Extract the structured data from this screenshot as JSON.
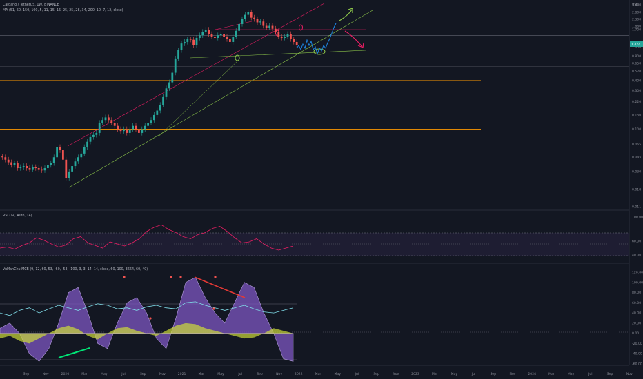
{
  "header": {
    "symbol_line": "Cardano / TetherUS, 1W, BINANCE",
    "ma_line": "MA (51, 50, 150, 100, 5, 11, 15, 16, 25, 25, 28, 34, 200, 10, 7, 12, close)",
    "currency": "USDT"
  },
  "price_axis": {
    "labels": [
      "3.450",
      "2.800",
      "2.300",
      "1.880",
      "1.700",
      "1.050",
      "0.800",
      "0.650",
      "0.520",
      "0.400",
      "0.300",
      "0.220",
      "0.150",
      "0.100",
      "0.065",
      "0.045",
      "0.030",
      "0.018",
      "0.011"
    ],
    "current_price": "1.474"
  },
  "rsi": {
    "title": "RSI (14, Auto, 14)",
    "labels": [
      "100.00",
      "60.00",
      "40.00"
    ]
  },
  "wt": {
    "title": "VuManChu MCB (9, 12, 60, 53, -60, -53, -100, 3, 3, 14, 14, close, 60, 100, 3664, 60, 40)",
    "labels": [
      "120.00",
      "100.00",
      "80.00",
      "60.00",
      "40.00",
      "20.00",
      "0.00",
      "-20.00",
      "-40.00",
      "-60.00"
    ]
  },
  "time_axis": {
    "labels": [
      "Sep",
      "Nov",
      "2020",
      "Mar",
      "May",
      "Jul",
      "Sep",
      "Nov",
      "2021",
      "Mar",
      "May",
      "Jul",
      "Sep",
      "Nov",
      "2022",
      "Mar",
      "May",
      "Jul",
      "Sep",
      "Nov",
      "2023",
      "Mar",
      "May",
      "Jul",
      "Sep",
      "Nov",
      "2024",
      "Mar",
      "May",
      "Jul",
      "Sep",
      "Nov"
    ]
  },
  "colors": {
    "background": "#131722",
    "up": "#26a69a",
    "down": "#ef5350",
    "orange_level": "#ff9800",
    "channel_red": "#e91e63",
    "channel_green": "#8bc34a",
    "projection": "#1e88e5",
    "rsi_line": "#e91e63",
    "wt_purple": "#7e57c2",
    "price_tag": "#26a69a"
  },
  "chart_data": [
    {
      "type": "candlestick",
      "title": "",
      "scale": "log",
      "x_labels": [
        "Sep",
        "Nov",
        "2020",
        "Mar",
        "May",
        "Jul",
        "Sep",
        "Nov",
        "2021",
        "Mar",
        "May",
        "Jul",
        "Sep",
        "Nov",
        "2022",
        "Mar",
        "May",
        "Jul"
      ],
      "series": [
        {
          "name": "close",
          "values": [
            0.045,
            0.042,
            0.039,
            0.036,
            0.038,
            0.033,
            0.034,
            0.035,
            0.033,
            0.032,
            0.034,
            0.033,
            0.032,
            0.031,
            0.033,
            0.036,
            0.038,
            0.045,
            0.06,
            0.055,
            0.042,
            0.025,
            0.03,
            0.035,
            0.04,
            0.045,
            0.05,
            0.06,
            0.07,
            0.08,
            0.085,
            0.09,
            0.12,
            0.13,
            0.14,
            0.13,
            0.12,
            0.11,
            0.1,
            0.095,
            0.1,
            0.09,
            0.1,
            0.11,
            0.1,
            0.09,
            0.1,
            0.11,
            0.12,
            0.13,
            0.15,
            0.17,
            0.2,
            0.25,
            0.32,
            0.38,
            0.5,
            0.75,
            0.95,
            1.15,
            1.2,
            1.3,
            1.28,
            1.1,
            1.35,
            1.45,
            1.6,
            1.7,
            1.5,
            1.4,
            1.35,
            1.45,
            1.5,
            1.4,
            1.3,
            1.2,
            1.4,
            1.65,
            2.0,
            2.3,
            2.6,
            2.8,
            2.4,
            2.3,
            2.1,
            2.15,
            1.9,
            1.8,
            1.9,
            1.75,
            1.6,
            1.4,
            1.35,
            1.4,
            1.5,
            1.3,
            1.2,
            1.1
          ]
        }
      ],
      "horizontal_levels": [
        0.4,
        0.1,
        1.45
      ]
    },
    {
      "type": "line",
      "title": "RSI (14, Auto, 14)",
      "ylim": [
        20,
        100
      ],
      "series": [
        {
          "name": "RSI",
          "values": [
            40,
            42,
            38,
            45,
            50,
            60,
            55,
            48,
            42,
            46,
            58,
            62,
            50,
            45,
            40,
            52,
            48,
            44,
            50,
            58,
            72,
            80,
            85,
            76,
            70,
            62,
            58,
            66,
            70,
            78,
            82,
            72,
            60,
            50,
            52,
            58,
            48,
            40,
            36,
            40,
            44
          ]
        }
      ]
    },
    {
      "type": "area",
      "title": "",
      "ylim": [
        -60,
        120
      ],
      "series": [
        {
          "name": "WT1",
          "values": [
            10,
            20,
            0,
            -40,
            -55,
            -30,
            20,
            80,
            90,
            40,
            -20,
            -30,
            20,
            60,
            70,
            40,
            -10,
            -30,
            30,
            100,
            110,
            70,
            40,
            20,
            60,
            100,
            90,
            40,
            0,
            -50,
            -55
          ]
        },
        {
          "name": "MF",
          "values": [
            -10,
            -5,
            -15,
            -20,
            -10,
            0,
            10,
            15,
            8,
            -5,
            -12,
            0,
            10,
            12,
            5,
            0,
            -5,
            5,
            15,
            20,
            18,
            10,
            5,
            0,
            -5,
            -10,
            -8,
            0,
            10,
            5,
            0
          ]
        }
      ]
    }
  ]
}
